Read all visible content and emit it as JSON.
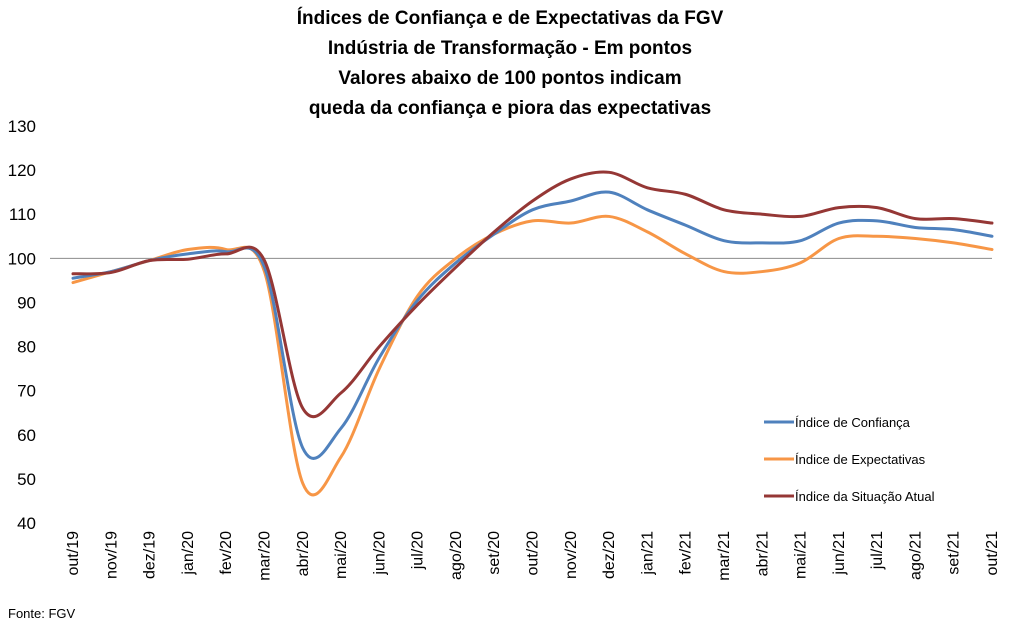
{
  "chart_data": {
    "type": "line",
    "title_lines": [
      "Índices de Confiança e de Expectativas da FGV",
      "Indústria de Transformação - Em pontos",
      "Valores abaixo de 100 pontos indicam",
      "queda da confiança e piora das expectativas"
    ],
    "categories": [
      "out/19",
      "nov/19",
      "dez/19",
      "jan/20",
      "fev/20",
      "mar/20",
      "abr/20",
      "mai/20",
      "jun/20",
      "jul/20",
      "ago/20",
      "set/20",
      "out/20",
      "nov/20",
      "dez/20",
      "jan/21",
      "fev/21",
      "mar/21",
      "abr/21",
      "mai/21",
      "jun/21",
      "jul/21",
      "ago/21",
      "set/21",
      "out/21"
    ],
    "series": [
      {
        "name": "Índice de Confiança",
        "color": "#4f81bd",
        "values": [
          95.5,
          97.0,
          99.5,
          101.0,
          101.5,
          98.0,
          57.0,
          61.5,
          77.5,
          90.5,
          99.0,
          105.5,
          111.0,
          113.0,
          115.0,
          111.0,
          107.5,
          104.0,
          103.5,
          104.0,
          108.0,
          108.5,
          107.0,
          106.5,
          105.0
        ]
      },
      {
        "name": "Índice de Expectativas",
        "color": "#f79646",
        "values": [
          94.5,
          97.0,
          99.5,
          102.0,
          102.0,
          97.0,
          49.0,
          55.0,
          75.0,
          91.5,
          100.0,
          105.5,
          108.5,
          108.0,
          109.5,
          106.0,
          101.0,
          97.0,
          97.0,
          99.0,
          104.5,
          105.0,
          104.5,
          103.5,
          102.0
        ]
      },
      {
        "name": "Índice da Situação Atual",
        "color": "#953735",
        "values": [
          96.5,
          96.8,
          99.5,
          99.8,
          101.0,
          99.5,
          66.0,
          69.5,
          80.0,
          89.5,
          98.0,
          106.0,
          113.0,
          118.0,
          119.5,
          116.0,
          114.5,
          111.0,
          110.0,
          109.5,
          111.5,
          111.5,
          109.0,
          109.0,
          108.0
        ]
      }
    ],
    "ylim": [
      40,
      130
    ],
    "yticks": [
      40,
      50,
      60,
      70,
      80,
      90,
      100,
      110,
      120,
      130
    ],
    "reference_line": 100,
    "grid": false,
    "legend_position": "lower-right",
    "source": "Fonte: FGV"
  }
}
